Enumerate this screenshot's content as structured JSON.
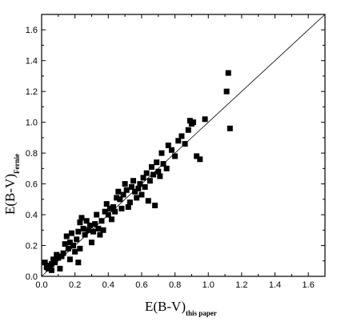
{
  "chart_data": {
    "type": "scatter",
    "title": "",
    "xlabel": {
      "main": "E(B-V)",
      "sub": "this paper"
    },
    "ylabel": {
      "main": "E(B-V)",
      "sub": "Fernie"
    },
    "xlim": [
      0.0,
      1.7
    ],
    "ylim": [
      0.0,
      1.7
    ],
    "xticks": [
      "0.0",
      "0.2",
      "0.4",
      "0.6",
      "0.8",
      "1.0",
      "1.2",
      "1.4",
      "1.6"
    ],
    "yticks": [
      "0.0",
      "0.2",
      "0.4",
      "0.6",
      "0.8",
      "1.0",
      "1.2",
      "1.4",
      "1.6"
    ],
    "grid": false,
    "reference_line": {
      "type": "y=x",
      "from": [
        0.0,
        0.0
      ],
      "to": [
        1.7,
        1.7
      ]
    },
    "marker_color": "#000000",
    "series": [
      {
        "points": [
          [
            0.02,
            0.09
          ],
          [
            0.03,
            0.06
          ],
          [
            0.04,
            0.05
          ],
          [
            0.05,
            0.07
          ],
          [
            0.06,
            0.08
          ],
          [
            0.06,
            0.04
          ],
          [
            0.07,
            0.11
          ],
          [
            0.08,
            0.09
          ],
          [
            0.09,
            0.14
          ],
          [
            0.1,
            0.12
          ],
          [
            0.11,
            0.05
          ],
          [
            0.12,
            0.13
          ],
          [
            0.13,
            0.15
          ],
          [
            0.14,
            0.21
          ],
          [
            0.15,
            0.26
          ],
          [
            0.16,
            0.18
          ],
          [
            0.17,
            0.22
          ],
          [
            0.17,
            0.11
          ],
          [
            0.18,
            0.28
          ],
          [
            0.19,
            0.2
          ],
          [
            0.2,
            0.16
          ],
          [
            0.21,
            0.24
          ],
          [
            0.22,
            0.29
          ],
          [
            0.22,
            0.09
          ],
          [
            0.23,
            0.35
          ],
          [
            0.23,
            0.18
          ],
          [
            0.24,
            0.38
          ],
          [
            0.25,
            0.31
          ],
          [
            0.26,
            0.27
          ],
          [
            0.27,
            0.36
          ],
          [
            0.28,
            0.3
          ],
          [
            0.29,
            0.33
          ],
          [
            0.3,
            0.22
          ],
          [
            0.31,
            0.29
          ],
          [
            0.32,
            0.34
          ],
          [
            0.33,
            0.4
          ],
          [
            0.34,
            0.31
          ],
          [
            0.35,
            0.27
          ],
          [
            0.36,
            0.36
          ],
          [
            0.37,
            0.3
          ],
          [
            0.38,
            0.42
          ],
          [
            0.39,
            0.47
          ],
          [
            0.4,
            0.4
          ],
          [
            0.41,
            0.44
          ],
          [
            0.42,
            0.37
          ],
          [
            0.43,
            0.45
          ],
          [
            0.44,
            0.42
          ],
          [
            0.45,
            0.51
          ],
          [
            0.46,
            0.55
          ],
          [
            0.47,
            0.5
          ],
          [
            0.48,
            0.44
          ],
          [
            0.49,
            0.53
          ],
          [
            0.5,
            0.6
          ],
          [
            0.51,
            0.56
          ],
          [
            0.52,
            0.45
          ],
          [
            0.53,
            0.48
          ],
          [
            0.54,
            0.58
          ],
          [
            0.55,
            0.62
          ],
          [
            0.56,
            0.55
          ],
          [
            0.57,
            0.51
          ],
          [
            0.58,
            0.57
          ],
          [
            0.59,
            0.6
          ],
          [
            0.6,
            0.53
          ],
          [
            0.61,
            0.64
          ],
          [
            0.62,
            0.58
          ],
          [
            0.63,
            0.67
          ],
          [
            0.64,
            0.49
          ],
          [
            0.65,
            0.62
          ],
          [
            0.66,
            0.71
          ],
          [
            0.67,
            0.66
          ],
          [
            0.68,
            0.46
          ],
          [
            0.69,
            0.74
          ],
          [
            0.7,
            0.68
          ],
          [
            0.71,
            0.65
          ],
          [
            0.72,
            0.8
          ],
          [
            0.73,
            0.73
          ],
          [
            0.75,
            0.7
          ],
          [
            0.76,
            0.85
          ],
          [
            0.78,
            0.82
          ],
          [
            0.8,
            0.78
          ],
          [
            0.82,
            0.88
          ],
          [
            0.84,
            0.91
          ],
          [
            0.86,
            0.86
          ],
          [
            0.88,
            0.95
          ],
          [
            0.89,
            1.01
          ],
          [
            0.9,
            0.99
          ],
          [
            0.91,
            1.0
          ],
          [
            0.93,
            0.78
          ],
          [
            0.95,
            0.76
          ],
          [
            0.98,
            1.02
          ],
          [
            1.11,
            1.2
          ],
          [
            1.12,
            1.32
          ],
          [
            1.13,
            0.96
          ]
        ]
      }
    ]
  }
}
